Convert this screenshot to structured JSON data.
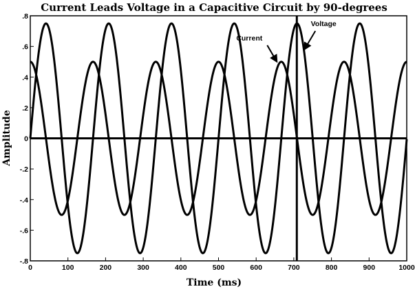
{
  "chart_data": {
    "type": "line",
    "title": "Current Leads Voltage in a Capacitive Circuit by 90-degrees",
    "xlabel": "Time (ms)",
    "ylabel": "Amplitude",
    "xlim": [
      0,
      1000
    ],
    "ylim": [
      -0.8,
      0.8
    ],
    "xticks": [
      0,
      100,
      200,
      300,
      400,
      500,
      600,
      700,
      800,
      900,
      1000
    ],
    "yticks": [
      0.8,
      0.6,
      0.4,
      0.2,
      0,
      -0.2,
      -0.4,
      -0.6,
      -0.8
    ],
    "series": [
      {
        "name": "Current",
        "kind": "cosine",
        "amplitude": 0.5,
        "period_ms": 166.7,
        "phase_deg": 0
      },
      {
        "name": "Voltage",
        "kind": "sine",
        "amplitude": 0.75,
        "period_ms": 166.7,
        "phase_deg": 0
      }
    ],
    "marker_line_x": 708,
    "annotations": [
      {
        "text": "Current",
        "tip": [
          655,
          0.5
        ]
      },
      {
        "text": "Voltage",
        "tip": [
          728,
          0.58
        ]
      }
    ],
    "colors": {
      "line": "#000000",
      "background": "#ffffff"
    }
  }
}
